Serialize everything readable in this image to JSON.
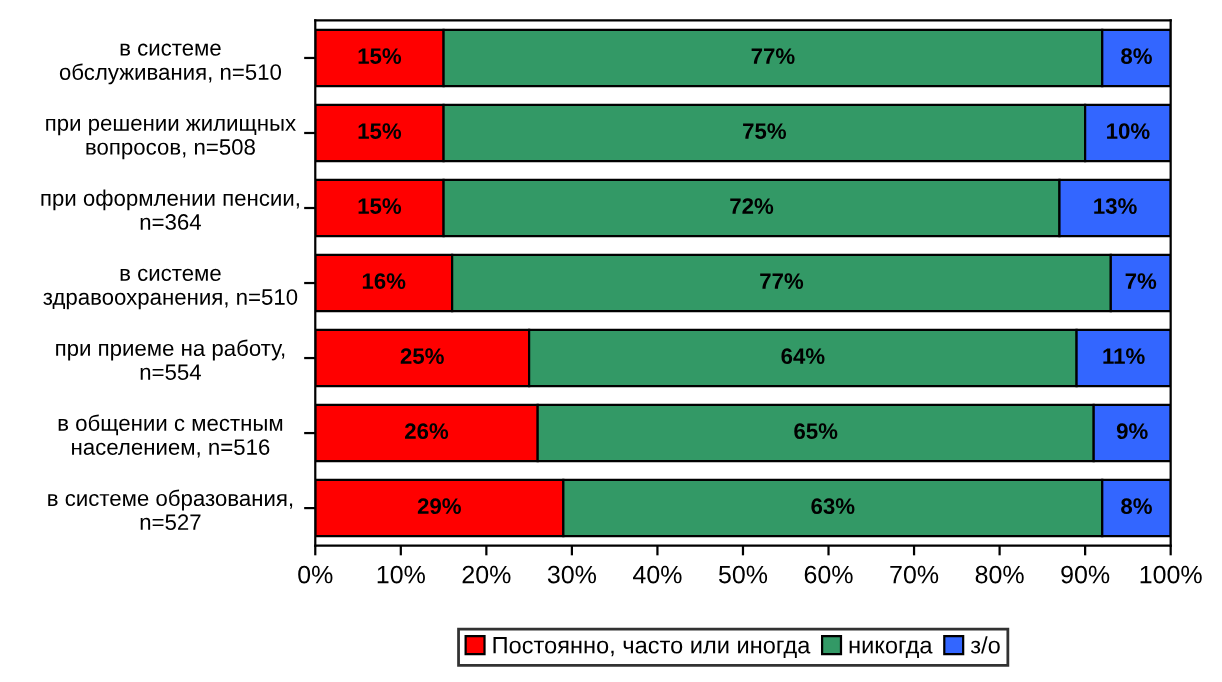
{
  "chart_data": {
    "type": "bar",
    "orientation": "horizontal",
    "stacked": true,
    "categories": [
      "в системе\nобслуживания, n=510",
      "при решении жилищных\nвопросов, n=508",
      "при оформлении пенсии,\nn=364",
      "в системе\nздравоохранения, n=510",
      "при приеме на работу,\nn=554",
      "в общении с местным\nнаселением, n=516",
      "в системе образования,\nn=527"
    ],
    "series": [
      {
        "name": "Постоянно, часто или иногда",
        "color": "#ff0000",
        "values": [
          15,
          15,
          15,
          16,
          25,
          26,
          29
        ],
        "value_labels": [
          "15%",
          "15%",
          "15%",
          "16%",
          "25%",
          "26%",
          "29%"
        ]
      },
      {
        "name": "никогда",
        "color": "#339966",
        "values": [
          77,
          75,
          72,
          77,
          64,
          65,
          63
        ],
        "value_labels": [
          "77%",
          "75%",
          "72%",
          "77%",
          "64%",
          "65%",
          "63%"
        ]
      },
      {
        "name": "з/о",
        "color": "#3366ff",
        "values": [
          8,
          10,
          13,
          7,
          11,
          9,
          8
        ],
        "value_labels": [
          "8%",
          "10%",
          "13%",
          "7%",
          "11%",
          "9%",
          "8%"
        ]
      }
    ],
    "xlim": [
      0,
      100
    ],
    "xticks": [
      {
        "value": 0,
        "label": "0%"
      },
      {
        "value": 10,
        "label": "10%"
      },
      {
        "value": 20,
        "label": "20%"
      },
      {
        "value": 30,
        "label": "30%"
      },
      {
        "value": 40,
        "label": "40%"
      },
      {
        "value": 50,
        "label": "50%"
      },
      {
        "value": 60,
        "label": "60%"
      },
      {
        "value": 70,
        "label": "70%"
      },
      {
        "value": 80,
        "label": "80%"
      },
      {
        "value": 90,
        "label": "90%"
      },
      {
        "value": 100,
        "label": "100%"
      }
    ],
    "grid": false,
    "legend": "bottom"
  }
}
